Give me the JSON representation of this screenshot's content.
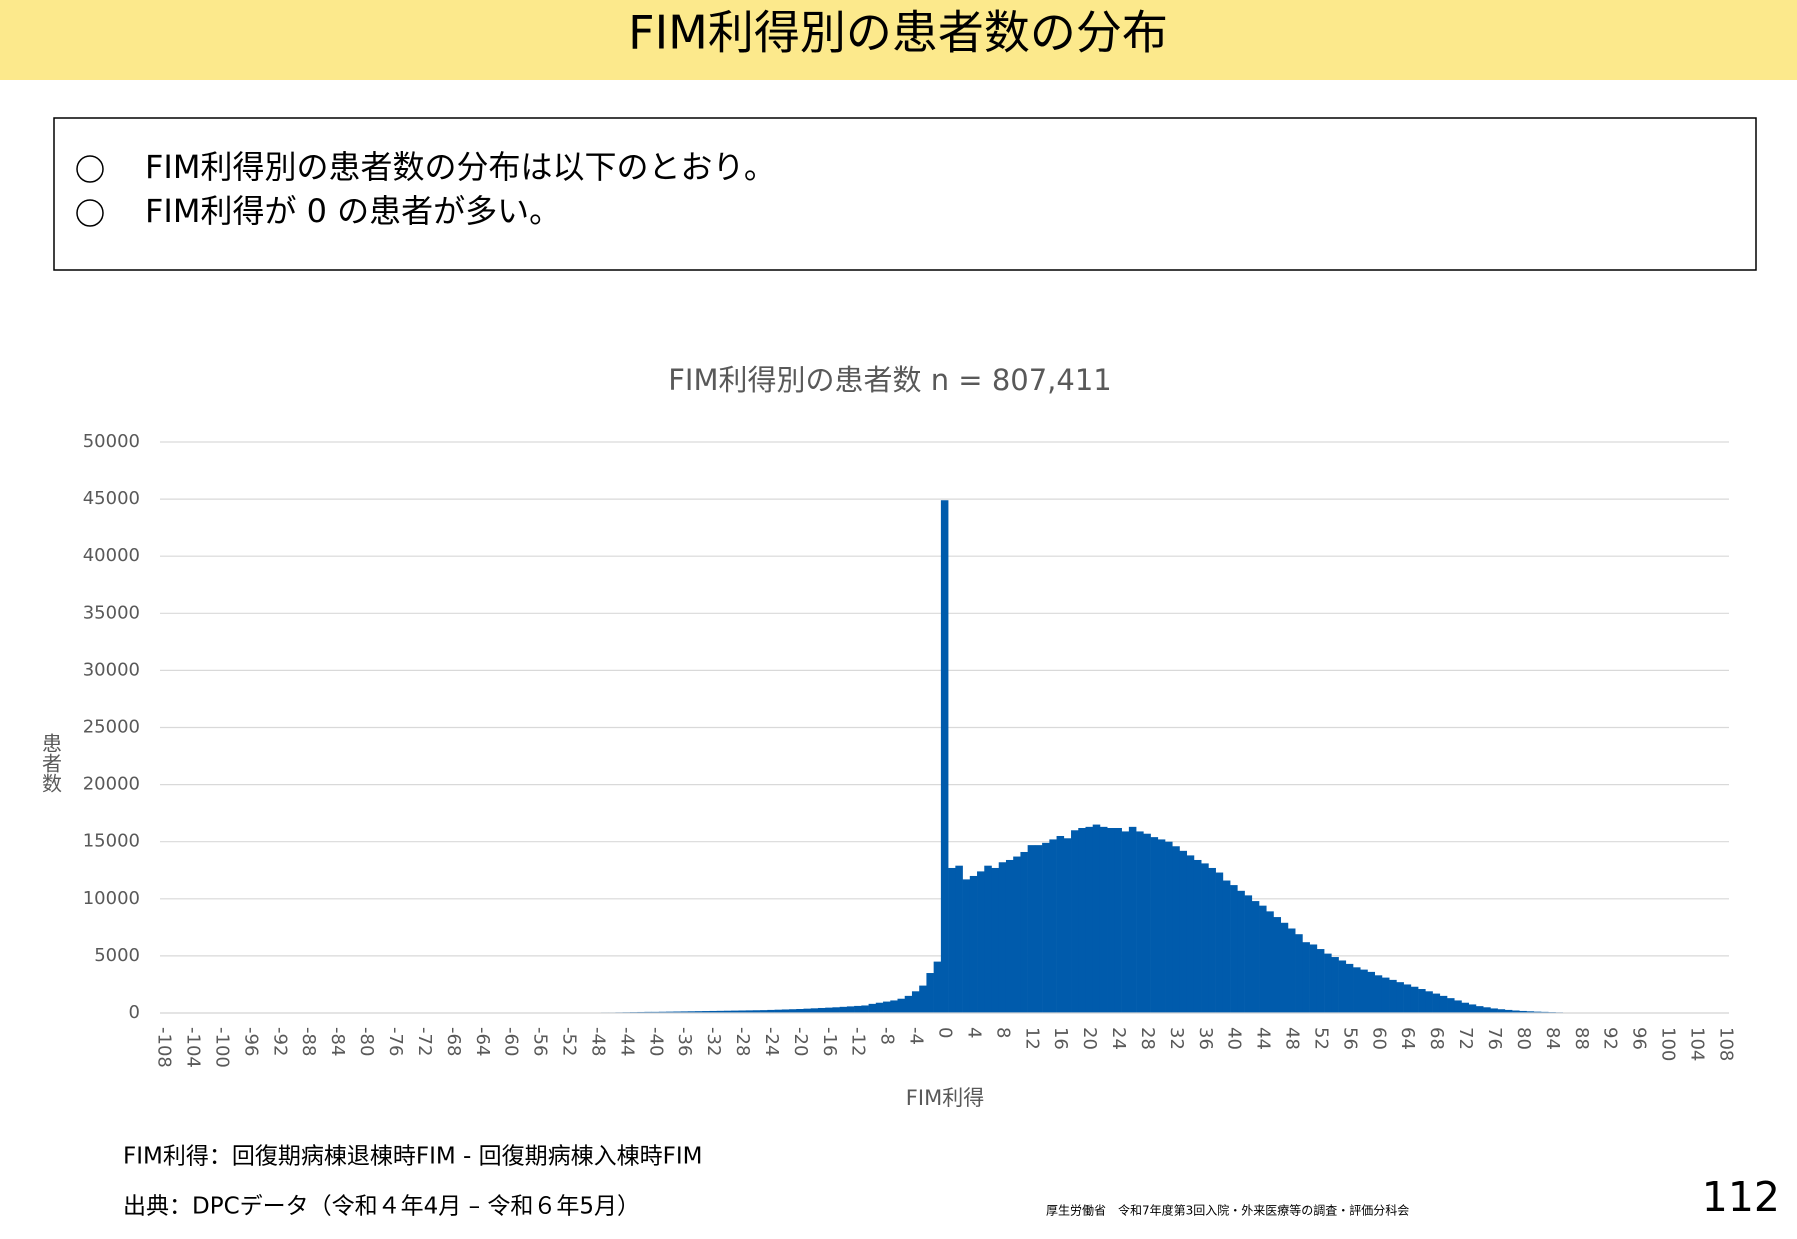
{
  "header": {
    "title": "FIM利得別の患者数の分布"
  },
  "summary": [
    "FIM利得別の患者数の分布は以下のとおり。",
    "FIM利得が 0 の患者が多い。"
  ],
  "chart_data": {
    "type": "bar",
    "title": "FIM利得別の患者数 n = 807,411",
    "x_label": "FIM利得",
    "y_label": "患者数",
    "color": "#005bac",
    "grid": true,
    "x": [
      -108,
      -107,
      -106,
      -105,
      -104,
      -103,
      -102,
      -101,
      -100,
      -99,
      -98,
      -97,
      -96,
      -95,
      -94,
      -93,
      -92,
      -91,
      -90,
      -89,
      -88,
      -87,
      -86,
      -85,
      -84,
      -83,
      -82,
      -81,
      -80,
      -79,
      -78,
      -77,
      -76,
      -75,
      -74,
      -73,
      -72,
      -71,
      -70,
      -69,
      -68,
      -67,
      -66,
      -65,
      -64,
      -63,
      -62,
      -61,
      -60,
      -59,
      -58,
      -57,
      -56,
      -55,
      -54,
      -53,
      -52,
      -51,
      -50,
      -49,
      -48,
      -47,
      -46,
      -45,
      -44,
      -43,
      -42,
      -41,
      -40,
      -39,
      -38,
      -37,
      -36,
      -35,
      -34,
      -33,
      -32,
      -31,
      -30,
      -29,
      -28,
      -27,
      -26,
      -25,
      -24,
      -23,
      -22,
      -21,
      -20,
      -19,
      -18,
      -17,
      -16,
      -15,
      -14,
      -13,
      -12,
      -11,
      -10,
      -9,
      -8,
      -7,
      -6,
      -5,
      -4,
      -3,
      -2,
      -1,
      0,
      1,
      2,
      3,
      4,
      5,
      6,
      7,
      8,
      9,
      10,
      11,
      12,
      13,
      14,
      15,
      16,
      17,
      18,
      19,
      20,
      21,
      22,
      23,
      24,
      25,
      26,
      27,
      28,
      29,
      30,
      31,
      32,
      33,
      34,
      35,
      36,
      37,
      38,
      39,
      40,
      41,
      42,
      43,
      44,
      45,
      46,
      47,
      48,
      49,
      50,
      51,
      52,
      53,
      54,
      55,
      56,
      57,
      58,
      59,
      60,
      61,
      62,
      63,
      64,
      65,
      66,
      67,
      68,
      69,
      70,
      71,
      72,
      73,
      74,
      75,
      76,
      77,
      78,
      79,
      80,
      81,
      82,
      83,
      84,
      85,
      86,
      87,
      88,
      89,
      90,
      91,
      92,
      93,
      94,
      95,
      96,
      97,
      98,
      99,
      100,
      101,
      102,
      103,
      104,
      105,
      106,
      107,
      108
    ],
    "values": [
      0,
      0,
      0,
      0,
      0,
      0,
      0,
      0,
      0,
      0,
      0,
      0,
      0,
      0,
      0,
      0,
      0,
      0,
      0,
      0,
      0,
      0,
      0,
      0,
      0,
      0,
      0,
      0,
      0,
      0,
      0,
      0,
      0,
      0,
      0,
      0,
      0,
      0,
      0,
      0,
      0,
      0,
      0,
      0,
      0,
      0,
      0,
      0,
      10,
      10,
      10,
      10,
      20,
      20,
      20,
      20,
      30,
      30,
      30,
      40,
      40,
      50,
      50,
      60,
      70,
      80,
      90,
      100,
      100,
      110,
      120,
      130,
      140,
      150,
      160,
      170,
      180,
      190,
      200,
      210,
      220,
      230,
      240,
      250,
      270,
      290,
      310,
      330,
      350,
      380,
      410,
      440,
      470,
      500,
      540,
      580,
      620,
      660,
      800,
      900,
      1000,
      1100,
      1250,
      1500,
      1900,
      2400,
      3500,
      4500,
      44900,
      12700,
      12900,
      11700,
      12000,
      12400,
      12900,
      12700,
      13200,
      13400,
      13700,
      14100,
      14700,
      14700,
      14900,
      15200,
      15500,
      15300,
      16000,
      16200,
      16300,
      16500,
      16300,
      16200,
      16200,
      15900,
      16300,
      15900,
      15700,
      15400,
      15200,
      15000,
      14600,
      14200,
      13800,
      13400,
      13100,
      12700,
      12300,
      11600,
      11200,
      10700,
      10300,
      9800,
      9400,
      8900,
      8400,
      7900,
      7400,
      6900,
      6200,
      6000,
      5600,
      5200,
      4900,
      4600,
      4300,
      4000,
      3800,
      3600,
      3300,
      3100,
      2900,
      2700,
      2500,
      2300,
      2100,
      1900,
      1700,
      1500,
      1300,
      1100,
      900,
      750,
      600,
      500,
      400,
      330,
      270,
      220,
      180,
      150,
      120,
      100,
      80,
      60,
      40,
      30,
      20,
      10,
      10,
      5,
      5,
      5,
      0,
      0,
      0,
      0,
      0,
      0,
      0,
      0,
      0,
      0,
      0,
      0,
      0,
      0,
      0
    ],
    "xlim": [
      -108.5,
      108.5
    ],
    "xticks": [
      -108,
      -104,
      -100,
      -96,
      -92,
      -88,
      -84,
      -80,
      -76,
      -72,
      -68,
      -64,
      -60,
      -56,
      -52,
      -48,
      -44,
      -40,
      -36,
      -32,
      -28,
      -24,
      -20,
      -16,
      -12,
      -8,
      -4,
      0,
      4,
      8,
      12,
      16,
      20,
      24,
      28,
      32,
      36,
      40,
      44,
      48,
      52,
      56,
      60,
      64,
      68,
      72,
      76,
      80,
      84,
      88,
      92,
      96,
      100,
      104,
      108
    ],
    "ylim": [
      0,
      50000
    ],
    "yticks": [
      0,
      5000,
      10000,
      15000,
      20000,
      25000,
      30000,
      35000,
      40000,
      45000,
      50000
    ]
  },
  "footnotes": [
    "FIM利得：回復期病棟退棟時FIM - 回復期病棟入棟時FIM",
    "出典：DPCデータ（令和４年4月 – 令和６年5月）"
  ],
  "footer": {
    "source_org": "厚生労働省　令和7年度第3回入院・外来医療等の調査・評価分科会",
    "page": "112"
  }
}
